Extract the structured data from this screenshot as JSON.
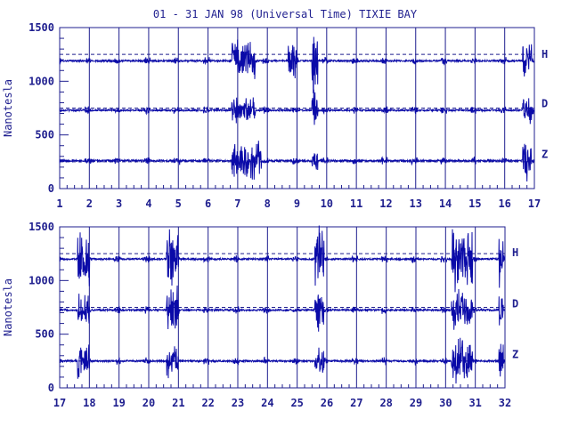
{
  "title": "01 - 31 JAN 98 (Universal Time) TIXIE BAY",
  "colors": {
    "ink": "#1f1f8f",
    "trace": "#0a0aa8",
    "background": "#ffffff"
  },
  "chart_data": [
    {
      "type": "line",
      "ylabel": "Nanotesla",
      "ylim": [
        0,
        1500
      ],
      "yticks": [
        "0",
        "500",
        "1000",
        "1500"
      ],
      "xlim": [
        1,
        17
      ],
      "xticks": [
        "1",
        "2",
        "3",
        "4",
        "5",
        "6",
        "7",
        "8",
        "9",
        "10",
        "11",
        "12",
        "13",
        "14",
        "15",
        "16",
        "17"
      ],
      "grid": {
        "vertical_lines_at_days": true
      },
      "reference_lines": [
        1250,
        750,
        250
      ],
      "series": [
        {
          "name": "H",
          "baseline": 1190,
          "disturbed_days": [
            [
              6.8,
              7.6,
              230
            ],
            [
              8.7,
              9.0,
              200
            ],
            [
              9.5,
              9.7,
              380
            ],
            [
              16.6,
              16.9,
              220
            ]
          ]
        },
        {
          "name": "D",
          "baseline": 730,
          "disturbed_days": [
            [
              6.8,
              7.6,
              130
            ],
            [
              9.5,
              9.7,
              230
            ],
            [
              16.6,
              16.9,
              140
            ]
          ]
        },
        {
          "name": "Z",
          "baseline": 260,
          "disturbed_days": [
            [
              6.8,
              7.8,
              200
            ],
            [
              9.5,
              9.7,
              200
            ],
            [
              16.6,
              16.9,
              220
            ]
          ]
        }
      ]
    },
    {
      "type": "line",
      "ylabel": "Nanotesla",
      "ylim": [
        0,
        1500
      ],
      "yticks": [
        "0",
        "500",
        "1000",
        "1500"
      ],
      "xlim": [
        17,
        32
      ],
      "xticks": [
        "17",
        "18",
        "19",
        "20",
        "21",
        "22",
        "23",
        "24",
        "25",
        "26",
        "27",
        "28",
        "29",
        "30",
        "31",
        "32"
      ],
      "grid": {
        "vertical_lines_at_days": true
      },
      "reference_lines": [
        1250,
        750,
        250
      ],
      "series": [
        {
          "name": "H",
          "baseline": 1200,
          "disturbed_days": [
            [
              17.6,
              18.0,
              350
            ],
            [
              20.6,
              21.0,
              350
            ],
            [
              25.6,
              25.9,
              330
            ],
            [
              30.2,
              30.9,
              330
            ],
            [
              31.8,
              31.95,
              320
            ]
          ]
        },
        {
          "name": "D",
          "baseline": 725,
          "disturbed_days": [
            [
              17.6,
              18.0,
              210
            ],
            [
              20.6,
              21.0,
              240
            ],
            [
              25.6,
              25.9,
              230
            ],
            [
              30.2,
              30.9,
              200
            ],
            [
              31.8,
              31.95,
              220
            ]
          ]
        },
        {
          "name": "Z",
          "baseline": 250,
          "disturbed_days": [
            [
              17.6,
              18.0,
              190
            ],
            [
              20.6,
              21.0,
              180
            ],
            [
              25.6,
              25.9,
              200
            ],
            [
              30.2,
              30.9,
              260
            ],
            [
              31.8,
              31.95,
              200
            ]
          ]
        }
      ]
    }
  ]
}
